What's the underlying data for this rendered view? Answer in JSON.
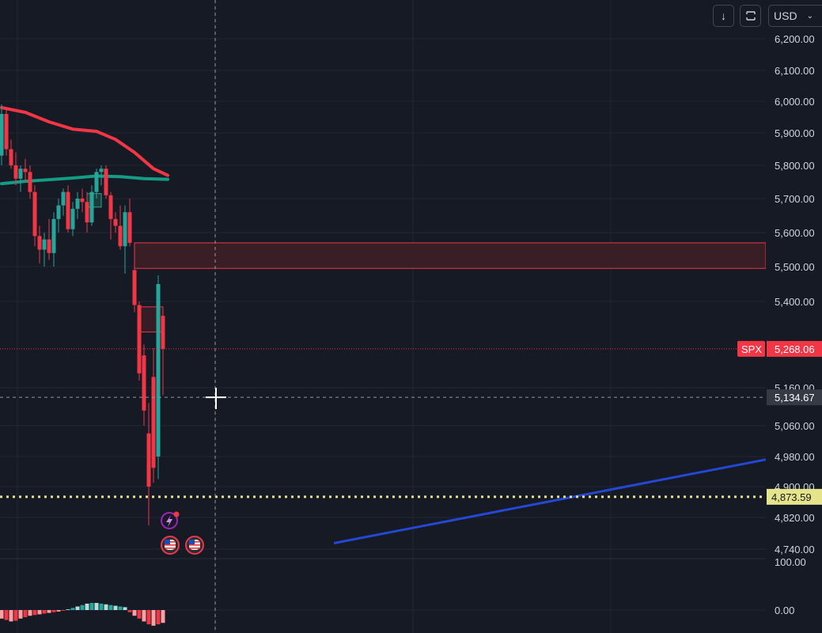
{
  "toolbar": {
    "download_icon": "arrow-down-icon",
    "sync_icon": "sync-icon",
    "currency": "USD",
    "currency_chevron_icon": "chevron-down-icon"
  },
  "chart_data": {
    "type": "candlestick",
    "symbol": "SPX",
    "price_axis": {
      "ticks": [
        "6,200.00",
        "6,100.00",
        "6,000.00",
        "5,900.00",
        "5,800.00",
        "5,700.00",
        "5,600.00",
        "5,500.00",
        "5,400.00",
        "5,160.00",
        "5,060.00",
        "4,980.00",
        "4,900.00",
        "4,820.00",
        "4,740.00"
      ],
      "range": [
        4720,
        6230
      ],
      "scale": "log"
    },
    "last_price": {
      "label": "SPX",
      "value": "5,268.06",
      "price": 5268.06,
      "color": "#f23645"
    },
    "crosshair": {
      "value": "5,134.67",
      "price": 5134.67
    },
    "horizontal_level": {
      "value": "4,873.59",
      "price": 4873.59,
      "color": "#e6e48a"
    },
    "resistance_zone": {
      "top": 5570,
      "bottom": 5495,
      "start_index": 28
    },
    "gap_box": {
      "top": 5385,
      "bottom": 5315,
      "start_index": 29,
      "end_index": 34
    },
    "small_box": {
      "top": 5715,
      "bottom": 5675,
      "start_index": 18,
      "end_index": 21
    },
    "upper_band": [
      [
        0,
        5980
      ],
      [
        5,
        5965
      ],
      [
        10,
        5935
      ],
      [
        15,
        5912
      ],
      [
        20,
        5905
      ],
      [
        24,
        5880
      ],
      [
        28,
        5840
      ],
      [
        32,
        5790
      ],
      [
        35,
        5770
      ]
    ],
    "middle_band": [
      [
        0,
        5745
      ],
      [
        5,
        5752
      ],
      [
        10,
        5757
      ],
      [
        15,
        5762
      ],
      [
        20,
        5768
      ],
      [
        25,
        5766
      ],
      [
        30,
        5760
      ],
      [
        35,
        5758
      ]
    ],
    "trend_line": [
      [
        70,
        4755
      ],
      [
        161,
        4972
      ]
    ],
    "candles": [
      {
        "o": 5830,
        "h": 5990,
        "l": 5800,
        "c": 5960
      },
      {
        "o": 5960,
        "h": 5975,
        "l": 5830,
        "c": 5850
      },
      {
        "o": 5850,
        "h": 5880,
        "l": 5790,
        "c": 5800
      },
      {
        "o": 5800,
        "h": 5840,
        "l": 5740,
        "c": 5760
      },
      {
        "o": 5760,
        "h": 5800,
        "l": 5720,
        "c": 5790
      },
      {
        "o": 5790,
        "h": 5820,
        "l": 5750,
        "c": 5780
      },
      {
        "o": 5780,
        "h": 5800,
        "l": 5700,
        "c": 5720
      },
      {
        "o": 5720,
        "h": 5740,
        "l": 5560,
        "c": 5590
      },
      {
        "o": 5590,
        "h": 5620,
        "l": 5510,
        "c": 5550
      },
      {
        "o": 5550,
        "h": 5600,
        "l": 5500,
        "c": 5580
      },
      {
        "o": 5580,
        "h": 5640,
        "l": 5520,
        "c": 5540
      },
      {
        "o": 5540,
        "h": 5660,
        "l": 5500,
        "c": 5640
      },
      {
        "o": 5640,
        "h": 5700,
        "l": 5600,
        "c": 5680
      },
      {
        "o": 5680,
        "h": 5730,
        "l": 5650,
        "c": 5720
      },
      {
        "o": 5720,
        "h": 5740,
        "l": 5600,
        "c": 5610
      },
      {
        "o": 5610,
        "h": 5690,
        "l": 5590,
        "c": 5670
      },
      {
        "o": 5670,
        "h": 5720,
        "l": 5640,
        "c": 5700
      },
      {
        "o": 5700,
        "h": 5730,
        "l": 5660,
        "c": 5690
      },
      {
        "o": 5690,
        "h": 5720,
        "l": 5600,
        "c": 5630
      },
      {
        "o": 5630,
        "h": 5740,
        "l": 5620,
        "c": 5720
      },
      {
        "o": 5720,
        "h": 5790,
        "l": 5700,
        "c": 5780
      },
      {
        "o": 5780,
        "h": 5800,
        "l": 5740,
        "c": 5790
      },
      {
        "o": 5790,
        "h": 5800,
        "l": 5700,
        "c": 5710
      },
      {
        "o": 5710,
        "h": 5720,
        "l": 5580,
        "c": 5640
      },
      {
        "o": 5640,
        "h": 5660,
        "l": 5600,
        "c": 5620
      },
      {
        "o": 5620,
        "h": 5680,
        "l": 5550,
        "c": 5560
      },
      {
        "o": 5560,
        "h": 5680,
        "l": 5480,
        "c": 5660
      },
      {
        "o": 5660,
        "h": 5700,
        "l": 5560,
        "c": 5570
      },
      {
        "o": 5490,
        "h": 5500,
        "l": 5370,
        "c": 5390
      },
      {
        "o": 5390,
        "h": 5400,
        "l": 5180,
        "c": 5200
      },
      {
        "o": 5250,
        "h": 5280,
        "l": 5060,
        "c": 5100
      },
      {
        "o": 5040,
        "h": 5120,
        "l": 4800,
        "c": 4900
      },
      {
        "o": 5190,
        "h": 5270,
        "l": 4910,
        "c": 4950
      },
      {
        "o": 4980,
        "h": 5475,
        "l": 4920,
        "c": 5450
      },
      {
        "o": 5360,
        "h": 5370,
        "l": 5140,
        "c": 5268
      }
    ]
  },
  "events": {
    "flash_icon": "lightning-icon",
    "flag_icons": [
      "us-flag-icon",
      "us-flag-icon"
    ]
  },
  "oscillator": {
    "ticks": [
      "100.00",
      "0.00"
    ],
    "histogram": [
      -12,
      -14,
      -16,
      -15,
      -12,
      -10,
      -8,
      -7,
      -6,
      -5,
      -4,
      -3,
      -2,
      -1,
      1,
      3,
      5,
      7,
      9,
      10,
      10,
      9,
      8,
      7,
      6,
      5,
      4,
      -3,
      -8,
      -12,
      -16,
      -20,
      -22,
      -20,
      -18
    ]
  },
  "colors": {
    "up": "#26a69a",
    "down": "#f23645",
    "upper_band": "#f23645",
    "middle_band": "#159c84",
    "trend_line": "#2548d4",
    "zone_fill": "#3a1e26",
    "zone_border": "#f23645"
  }
}
